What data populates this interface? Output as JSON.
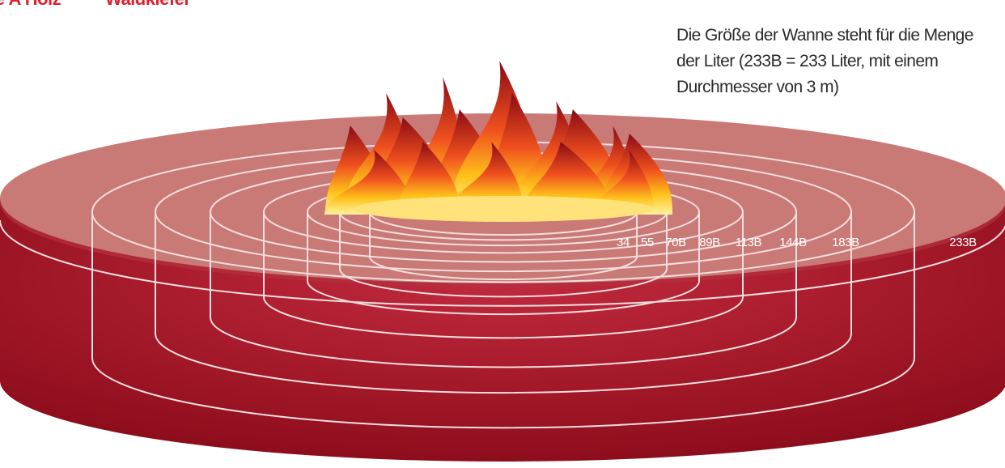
{
  "header": {
    "title_left": "e A Holz",
    "title_right": "Waldkiefer"
  },
  "description": {
    "lines": [
      "Die Größe der Wanne steht für die Menge",
      "der Liter (233B = 233 Liter, mit einem",
      "Durchmesser von 3 m)"
    ]
  },
  "rings": [
    {
      "label": "34"
    },
    {
      "label": "55"
    },
    {
      "label": "70B"
    },
    {
      "label": "89B"
    },
    {
      "label": "113B"
    },
    {
      "label": "144B"
    },
    {
      "label": "183B"
    },
    {
      "label": "233B"
    }
  ]
}
